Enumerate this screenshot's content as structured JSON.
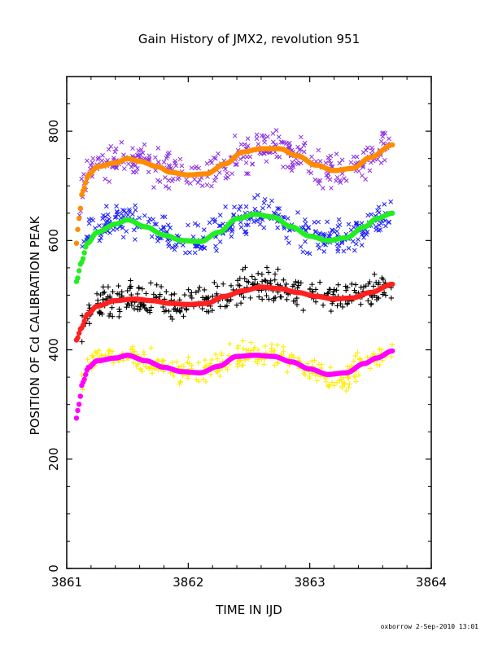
{
  "chart_data": {
    "type": "scatter",
    "title": "Gain History of JMX2, revolution 951",
    "xlabel": "TIME IN IJD",
    "ylabel": "POSITION OF Cd CALIBRATION PEAK",
    "xlim": [
      3861,
      3864
    ],
    "ylim": [
      0,
      900
    ],
    "x_ticks": [
      3861,
      3862,
      3863,
      3864
    ],
    "y_ticks": [
      0,
      200,
      400,
      600,
      800
    ],
    "footer": "oxborrow  2-Sep-2010 13:01",
    "series": [
      {
        "color": "#8a2be2",
        "marker": "x",
        "scatter": 16,
        "points": [
          [
            3861.1,
            660
          ],
          [
            3861.15,
            725
          ],
          [
            3861.25,
            740
          ],
          [
            3861.4,
            745
          ],
          [
            3861.5,
            750
          ],
          [
            3861.6,
            745
          ],
          [
            3861.8,
            730
          ],
          [
            3861.95,
            722
          ],
          [
            3862.1,
            722
          ],
          [
            3862.3,
            740
          ],
          [
            3862.45,
            762
          ],
          [
            3862.6,
            770
          ],
          [
            3862.75,
            768
          ],
          [
            3862.9,
            755
          ],
          [
            3863.05,
            738
          ],
          [
            3863.2,
            728
          ],
          [
            3863.35,
            732
          ],
          [
            3863.5,
            752
          ],
          [
            3863.68,
            775
          ]
        ]
      },
      {
        "color": "#ff8c00",
        "marker": "line",
        "points": [
          [
            3861.08,
            595
          ],
          [
            3861.1,
            640
          ],
          [
            3861.13,
            690
          ],
          [
            3861.18,
            720
          ],
          [
            3861.25,
            735
          ],
          [
            3861.4,
            742
          ],
          [
            3861.5,
            750
          ],
          [
            3861.6,
            745
          ],
          [
            3861.75,
            735
          ],
          [
            3861.85,
            725
          ],
          [
            3862.0,
            720
          ],
          [
            3862.15,
            722
          ],
          [
            3862.3,
            740
          ],
          [
            3862.45,
            762
          ],
          [
            3862.6,
            768
          ],
          [
            3862.75,
            768
          ],
          [
            3862.9,
            755
          ],
          [
            3863.05,
            738
          ],
          [
            3863.2,
            728
          ],
          [
            3863.35,
            732
          ],
          [
            3863.5,
            752
          ],
          [
            3863.68,
            775
          ]
        ]
      },
      {
        "color": "#1a1aff",
        "marker": "x",
        "scatter": 15,
        "points": [
          [
            3861.12,
            580
          ],
          [
            3861.2,
            615
          ],
          [
            3861.35,
            630
          ],
          [
            3861.5,
            640
          ],
          [
            3861.65,
            625
          ],
          [
            3861.8,
            610
          ],
          [
            3861.95,
            600
          ],
          [
            3862.1,
            598
          ],
          [
            3862.25,
            615
          ],
          [
            3862.4,
            640
          ],
          [
            3862.55,
            648
          ],
          [
            3862.7,
            645
          ],
          [
            3862.85,
            625
          ],
          [
            3863.0,
            608
          ],
          [
            3863.15,
            600
          ],
          [
            3863.3,
            605
          ],
          [
            3863.45,
            625
          ],
          [
            3863.6,
            640
          ],
          [
            3863.68,
            650
          ]
        ]
      },
      {
        "color": "#22ee22",
        "marker": "line",
        "points": [
          [
            3861.08,
            525
          ],
          [
            3861.12,
            560
          ],
          [
            3861.17,
            595
          ],
          [
            3861.25,
            615
          ],
          [
            3861.4,
            630
          ],
          [
            3861.5,
            638
          ],
          [
            3861.65,
            625
          ],
          [
            3861.8,
            610
          ],
          [
            3861.95,
            600
          ],
          [
            3862.1,
            598
          ],
          [
            3862.25,
            615
          ],
          [
            3862.4,
            640
          ],
          [
            3862.55,
            648
          ],
          [
            3862.7,
            643
          ],
          [
            3862.85,
            625
          ],
          [
            3863.0,
            608
          ],
          [
            3863.15,
            600
          ],
          [
            3863.3,
            605
          ],
          [
            3863.45,
            625
          ],
          [
            3863.55,
            640
          ],
          [
            3863.68,
            650
          ]
        ]
      },
      {
        "color": "#000000",
        "marker": "+",
        "scatter": 15,
        "points": [
          [
            3861.12,
            440
          ],
          [
            3861.2,
            480
          ],
          [
            3861.35,
            490
          ],
          [
            3861.5,
            495
          ],
          [
            3861.65,
            490
          ],
          [
            3861.8,
            485
          ],
          [
            3861.95,
            480
          ],
          [
            3862.1,
            485
          ],
          [
            3862.25,
            495
          ],
          [
            3862.4,
            505
          ],
          [
            3862.55,
            520
          ],
          [
            3862.7,
            515
          ],
          [
            3862.85,
            510
          ],
          [
            3863.0,
            500
          ],
          [
            3863.15,
            495
          ],
          [
            3863.3,
            495
          ],
          [
            3863.45,
            505
          ],
          [
            3863.6,
            510
          ],
          [
            3863.68,
            510
          ]
        ]
      },
      {
        "color": "#ff2020",
        "marker": "line",
        "points": [
          [
            3861.08,
            418
          ],
          [
            3861.12,
            440
          ],
          [
            3861.17,
            465
          ],
          [
            3861.25,
            480
          ],
          [
            3861.4,
            490
          ],
          [
            3861.55,
            493
          ],
          [
            3861.7,
            490
          ],
          [
            3861.85,
            485
          ],
          [
            3862.0,
            483
          ],
          [
            3862.15,
            485
          ],
          [
            3862.3,
            498
          ],
          [
            3862.45,
            508
          ],
          [
            3862.6,
            515
          ],
          [
            3862.75,
            512
          ],
          [
            3862.9,
            505
          ],
          [
            3863.05,
            498
          ],
          [
            3863.2,
            493
          ],
          [
            3863.35,
            495
          ],
          [
            3863.5,
            505
          ],
          [
            3863.68,
            520
          ]
        ]
      },
      {
        "color": "#ffee00",
        "marker": "+",
        "scatter": 12,
        "points": [
          [
            3861.12,
            340
          ],
          [
            3861.2,
            380
          ],
          [
            3861.35,
            388
          ],
          [
            3861.5,
            390
          ],
          [
            3861.65,
            380
          ],
          [
            3861.8,
            368
          ],
          [
            3861.95,
            360
          ],
          [
            3862.1,
            358
          ],
          [
            3862.25,
            370
          ],
          [
            3862.4,
            388
          ],
          [
            3862.55,
            395
          ],
          [
            3862.7,
            390
          ],
          [
            3862.85,
            378
          ],
          [
            3863.0,
            365
          ],
          [
            3863.15,
            355
          ],
          [
            3863.25,
            352
          ],
          [
            3863.4,
            368
          ],
          [
            3863.55,
            385
          ],
          [
            3863.68,
            400
          ]
        ]
      },
      {
        "color": "#ff00ff",
        "marker": "line",
        "points": [
          [
            3861.08,
            275
          ],
          [
            3861.1,
            300
          ],
          [
            3861.13,
            340
          ],
          [
            3861.18,
            368
          ],
          [
            3861.25,
            380
          ],
          [
            3861.4,
            385
          ],
          [
            3861.5,
            390
          ],
          [
            3861.65,
            380
          ],
          [
            3861.8,
            368
          ],
          [
            3861.95,
            360
          ],
          [
            3862.1,
            358
          ],
          [
            3862.25,
            370
          ],
          [
            3862.4,
            388
          ],
          [
            3862.55,
            390
          ],
          [
            3862.7,
            388
          ],
          [
            3862.85,
            378
          ],
          [
            3863.0,
            365
          ],
          [
            3863.15,
            355
          ],
          [
            3863.3,
            358
          ],
          [
            3863.45,
            375
          ],
          [
            3863.55,
            385
          ],
          [
            3863.68,
            398
          ]
        ]
      }
    ]
  }
}
